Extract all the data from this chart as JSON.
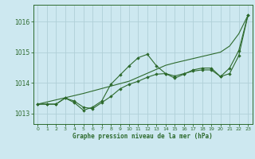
{
  "title": "Graphe pression niveau de la mer (hPa)",
  "background_color": "#cde8f0",
  "grid_color": "#b0cfd8",
  "line_color": "#2d6a2d",
  "x_ticks": [
    0,
    1,
    2,
    3,
    4,
    5,
    6,
    7,
    8,
    9,
    10,
    11,
    12,
    13,
    14,
    15,
    16,
    17,
    18,
    19,
    20,
    21,
    22,
    23
  ],
  "y_ticks": [
    1013,
    1014,
    1015,
    1016
  ],
  "ylim": [
    1012.65,
    1016.55
  ],
  "xlim": [
    -0.5,
    23.5
  ],
  "series_diagonal": [
    1013.3,
    1013.37,
    1013.44,
    1013.51,
    1013.58,
    1013.65,
    1013.73,
    1013.81,
    1013.89,
    1013.97,
    1014.05,
    1014.18,
    1014.31,
    1014.44,
    1014.57,
    1014.65,
    1014.72,
    1014.79,
    1014.86,
    1014.93,
    1015.0,
    1015.2,
    1015.6,
    1016.2
  ],
  "series_wiggly": [
    1013.3,
    1013.3,
    1013.3,
    1013.5,
    1013.35,
    1013.1,
    1013.2,
    1013.4,
    1013.95,
    1014.25,
    1014.55,
    1014.82,
    1014.93,
    1014.55,
    1014.3,
    1014.15,
    1014.28,
    1014.42,
    1014.48,
    1014.48,
    1014.2,
    1014.48,
    1015.05,
    1016.2
  ],
  "series_smooth": [
    1013.3,
    1013.3,
    1013.3,
    1013.5,
    1013.4,
    1013.2,
    1013.15,
    1013.35,
    1013.55,
    1013.8,
    1013.95,
    1014.05,
    1014.18,
    1014.28,
    1014.3,
    1014.22,
    1014.3,
    1014.38,
    1014.42,
    1014.42,
    1014.2,
    1014.3,
    1014.88,
    1016.2
  ]
}
